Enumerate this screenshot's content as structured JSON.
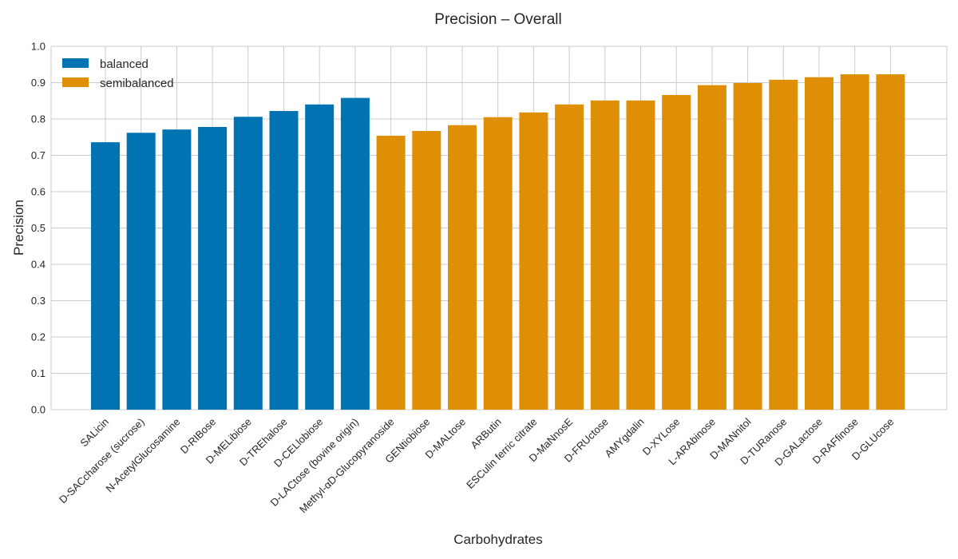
{
  "chart_data": {
    "type": "bar",
    "title": "Precision – Overall",
    "xlabel": "Carbohydrates",
    "ylabel": "Precision",
    "ylim": [
      0,
      1.0
    ],
    "yticks": [
      "0.0",
      "0.1",
      "0.2",
      "0.3",
      "0.4",
      "0.5",
      "0.6",
      "0.7",
      "0.8",
      "0.9",
      "1.0"
    ],
    "grid": true,
    "legend_position": "top-left",
    "categories": [
      "SALicin",
      "D-SACcharose (sucrose)",
      "N-AcetylGlucosamine",
      "D-RIBose",
      "D-MELibiose",
      "D-TREhalose",
      "D-CELlobiose",
      "D-LACtose (bovine origin)",
      "Methyl-αD-Glucopyranoside",
      "GENtiobiose",
      "D-MALtose",
      "ARButin",
      "ESCulin ferric citrate",
      "D-MaNnosE",
      "D-FRUctose",
      "AMYgdalin",
      "D-XYLose",
      "L-ARAbinose",
      "D-MANnitol",
      "D-TURanose",
      "D-GALactose",
      "D-RAFfinose",
      "D-GLUcose"
    ],
    "series": [
      {
        "name": "balanced",
        "color": "#0173b2",
        "values": [
          0.736,
          0.762,
          0.771,
          0.778,
          0.806,
          0.822,
          0.84,
          0.858,
          null,
          null,
          null,
          null,
          null,
          null,
          null,
          null,
          null,
          null,
          null,
          null,
          null,
          null,
          null
        ]
      },
      {
        "name": "semibalanced",
        "color": "#de8f05",
        "values": [
          null,
          null,
          null,
          null,
          null,
          null,
          null,
          null,
          0.754,
          0.767,
          0.783,
          0.805,
          0.818,
          0.84,
          0.851,
          0.851,
          0.866,
          0.893,
          0.899,
          0.908,
          0.915,
          0.923,
          0.923
        ]
      }
    ]
  }
}
